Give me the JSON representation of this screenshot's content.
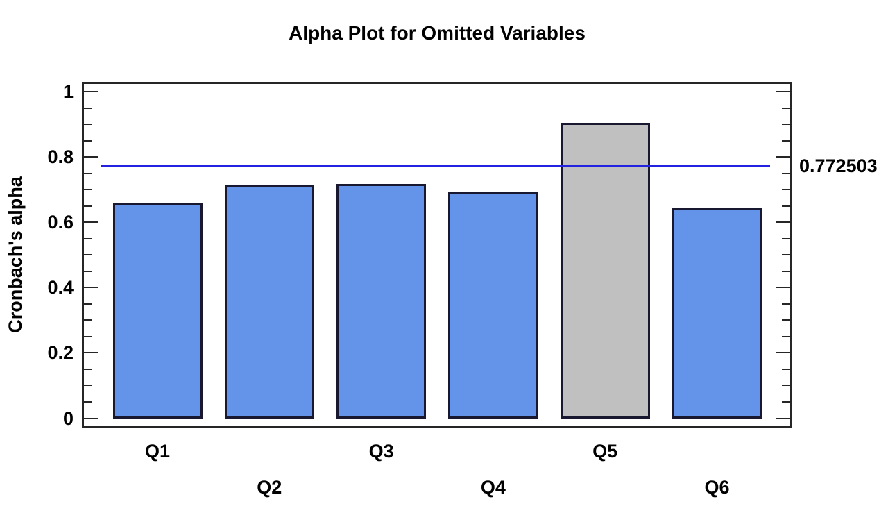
{
  "chart_data": {
    "type": "bar",
    "title": "Alpha Plot for Omitted Variables",
    "ylabel": "Cronbach's alpha",
    "xlabel": "",
    "categories": [
      "Q1",
      "Q2",
      "Q3",
      "Q4",
      "Q5",
      "Q6"
    ],
    "values": [
      0.66,
      0.716,
      0.718,
      0.695,
      0.905,
      0.645
    ],
    "bar_colors": [
      "#6494e9",
      "#6494e9",
      "#6494e9",
      "#6494e9",
      "#c0c0c0",
      "#6494e9"
    ],
    "highlighted_bar": "Q5",
    "bar_fill_color": "#6494e9",
    "highlight_fill_color": "#c0c0c0",
    "bar_border_color": "#181830",
    "frame_color": "#262626",
    "ylim": [
      0,
      1
    ],
    "yticks_major": [
      0,
      0.2,
      0.4,
      0.6,
      0.8,
      1
    ],
    "ytick_labels": [
      "0",
      "0.2",
      "0.4",
      "0.6",
      "0.8",
      "1"
    ],
    "ytick_minor_step": 0.05,
    "grid": false,
    "legend": null,
    "x_label_layout": "staggered",
    "reference_line": {
      "value": 0.772503,
      "label": "0.772503",
      "color": "#2222e0"
    }
  }
}
